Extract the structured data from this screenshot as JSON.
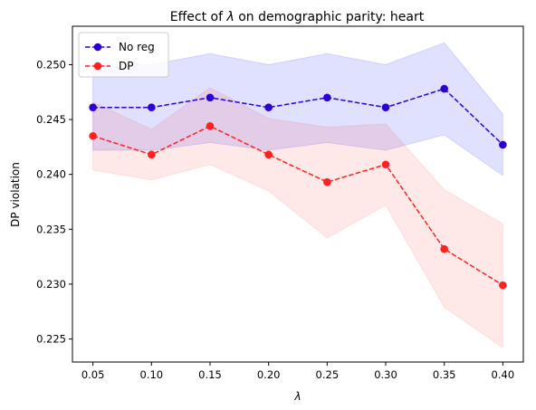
{
  "chart_data": {
    "type": "line",
    "title_prefix": "Effect of ",
    "title_symbol": "λ",
    "title_suffix": " on demographic parity: heart",
    "xlabel": "λ",
    "ylabel": "DP violation",
    "x": [
      0.05,
      0.1,
      0.15,
      0.2,
      0.25,
      0.3,
      0.35,
      0.4
    ],
    "xticks": [
      "0.05",
      "0.10",
      "0.15",
      "0.20",
      "0.25",
      "0.30",
      "0.35",
      "0.40"
    ],
    "yticks": [
      "0.225",
      "0.230",
      "0.235",
      "0.240",
      "0.245",
      "0.250"
    ],
    "ytick_values": [
      0.225,
      0.23,
      0.235,
      0.24,
      0.245,
      0.25
    ],
    "xlim": [
      0.0325,
      0.4175
    ],
    "ylim": [
      0.2229,
      0.2535
    ],
    "legend_position": "top-left",
    "grid": false,
    "series": [
      {
        "name": "No reg",
        "color": "#2a00d4",
        "band_color": "#0000ff",
        "values": [
          0.2461,
          0.2461,
          0.247,
          0.2461,
          0.247,
          0.2461,
          0.2478,
          0.2427
        ],
        "upper": [
          0.25,
          0.25,
          0.251,
          0.25,
          0.251,
          0.25,
          0.252,
          0.2455
        ],
        "lower": [
          0.2422,
          0.2422,
          0.2429,
          0.2422,
          0.2429,
          0.2422,
          0.2436,
          0.2399
        ]
      },
      {
        "name": "DP",
        "color": "#ff2020",
        "band_color": "#ff4040",
        "values": [
          0.2435,
          0.2418,
          0.2444,
          0.2418,
          0.2393,
          0.2409,
          0.2332,
          0.2299
        ],
        "upper": [
          0.2466,
          0.2441,
          0.2479,
          0.2451,
          0.2443,
          0.2446,
          0.2386,
          0.2355
        ],
        "lower": [
          0.2404,
          0.2395,
          0.2409,
          0.2385,
          0.2342,
          0.2372,
          0.2279,
          0.2242
        ]
      }
    ]
  }
}
